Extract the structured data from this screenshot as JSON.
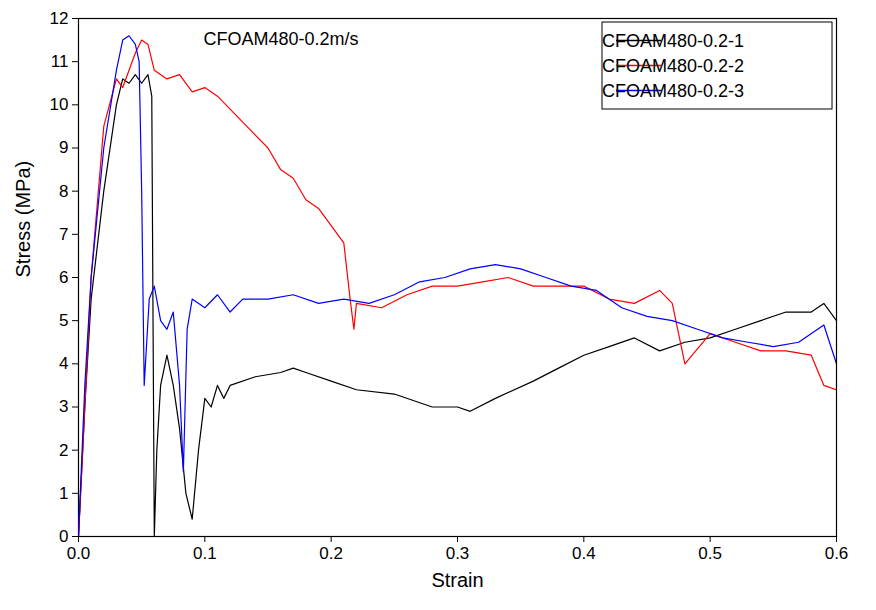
{
  "chart_data": {
    "type": "line",
    "title": "CFOAM480-0.2m/s",
    "x_label": "Strain",
    "y_label": "Stress (MPa)",
    "xlim": [
      0,
      0.6
    ],
    "xticks": [
      {
        "value": 0,
        "label": "0.0"
      },
      0.1,
      0.2,
      0.3,
      0.4,
      0.5,
      0.6
    ],
    "ylim": [
      0,
      12
    ],
    "yticks": [
      0,
      1,
      2,
      3,
      4,
      5,
      6,
      7,
      8,
      9,
      10,
      11,
      12
    ],
    "grid": false,
    "legend": "upper right",
    "series": [
      {
        "name": "CFOAM480-0.2-1",
        "color": "#000000",
        "x": [
          0,
          0.005,
          0.01,
          0.02,
          0.03,
          0.035,
          0.04,
          0.045,
          0.05,
          0.055,
          0.058,
          0.059,
          0.06,
          0.062,
          0.065,
          0.07,
          0.075,
          0.08,
          0.085,
          0.09,
          0.095,
          0.1,
          0.105,
          0.11,
          0.115,
          0.12,
          0.14,
          0.16,
          0.17,
          0.18,
          0.2,
          0.22,
          0.25,
          0.28,
          0.3,
          0.31,
          0.33,
          0.36,
          0.38,
          0.4,
          0.42,
          0.44,
          0.46,
          0.48,
          0.5,
          0.52,
          0.54,
          0.56,
          0.58,
          0.59,
          0.6
        ],
        "values": [
          0,
          3,
          5.5,
          8,
          10,
          10.6,
          10.5,
          10.7,
          10.5,
          10.7,
          10.2,
          5,
          0,
          2,
          3.5,
          4.2,
          3.5,
          2.5,
          1,
          0.4,
          2,
          3.2,
          3,
          3.5,
          3.2,
          3.5,
          3.7,
          3.8,
          3.9,
          3.8,
          3.6,
          3.4,
          3.3,
          3.0,
          3.0,
          2.9,
          3.2,
          3.6,
          3.9,
          4.2,
          4.4,
          4.6,
          4.3,
          4.5,
          4.6,
          4.8,
          5.0,
          5.2,
          5.2,
          5.4,
          5.0
        ]
      },
      {
        "name": "CFOAM480-0.2-2",
        "color": "#ff0000",
        "x": [
          0,
          0.005,
          0.01,
          0.02,
          0.03,
          0.035,
          0.04,
          0.045,
          0.05,
          0.055,
          0.06,
          0.07,
          0.08,
          0.09,
          0.1,
          0.11,
          0.12,
          0.13,
          0.14,
          0.15,
          0.16,
          0.17,
          0.18,
          0.19,
          0.2,
          0.21,
          0.215,
          0.218,
          0.22,
          0.24,
          0.26,
          0.28,
          0.3,
          0.32,
          0.34,
          0.36,
          0.38,
          0.4,
          0.42,
          0.44,
          0.46,
          0.47,
          0.48,
          0.5,
          0.52,
          0.54,
          0.56,
          0.58,
          0.59,
          0.6
        ],
        "values": [
          0,
          3,
          6,
          9.5,
          10.6,
          10.4,
          10.8,
          11.2,
          11.5,
          11.4,
          10.8,
          10.6,
          10.7,
          10.3,
          10.4,
          10.2,
          9.9,
          9.6,
          9.3,
          9.0,
          8.5,
          8.3,
          7.8,
          7.6,
          7.2,
          6.8,
          5.5,
          4.8,
          5.4,
          5.3,
          5.6,
          5.8,
          5.8,
          5.9,
          6.0,
          5.8,
          5.8,
          5.8,
          5.5,
          5.4,
          5.7,
          5.4,
          4.0,
          4.7,
          4.5,
          4.3,
          4.3,
          4.2,
          3.5,
          3.4
        ]
      },
      {
        "name": "CFOAM480-0.2-3",
        "color": "#0000ff",
        "x": [
          0,
          0.005,
          0.01,
          0.02,
          0.03,
          0.035,
          0.04,
          0.045,
          0.048,
          0.05,
          0.052,
          0.054,
          0.056,
          0.06,
          0.065,
          0.07,
          0.075,
          0.08,
          0.083,
          0.086,
          0.09,
          0.1,
          0.11,
          0.12,
          0.13,
          0.15,
          0.17,
          0.19,
          0.21,
          0.23,
          0.25,
          0.27,
          0.29,
          0.31,
          0.33,
          0.35,
          0.37,
          0.39,
          0.41,
          0.43,
          0.45,
          0.47,
          0.49,
          0.51,
          0.53,
          0.55,
          0.57,
          0.59,
          0.6
        ],
        "values": [
          0,
          3.5,
          6,
          9,
          10.8,
          11.5,
          11.6,
          11.4,
          11.0,
          8,
          3.5,
          4.5,
          5.5,
          5.8,
          5.0,
          4.8,
          5.2,
          3.5,
          1.5,
          4.8,
          5.5,
          5.3,
          5.6,
          5.2,
          5.5,
          5.5,
          5.6,
          5.4,
          5.5,
          5.4,
          5.6,
          5.9,
          6.0,
          6.2,
          6.3,
          6.2,
          6.0,
          5.8,
          5.7,
          5.3,
          5.1,
          5.0,
          4.8,
          4.6,
          4.5,
          4.4,
          4.5,
          4.9,
          4.0
        ]
      }
    ]
  }
}
